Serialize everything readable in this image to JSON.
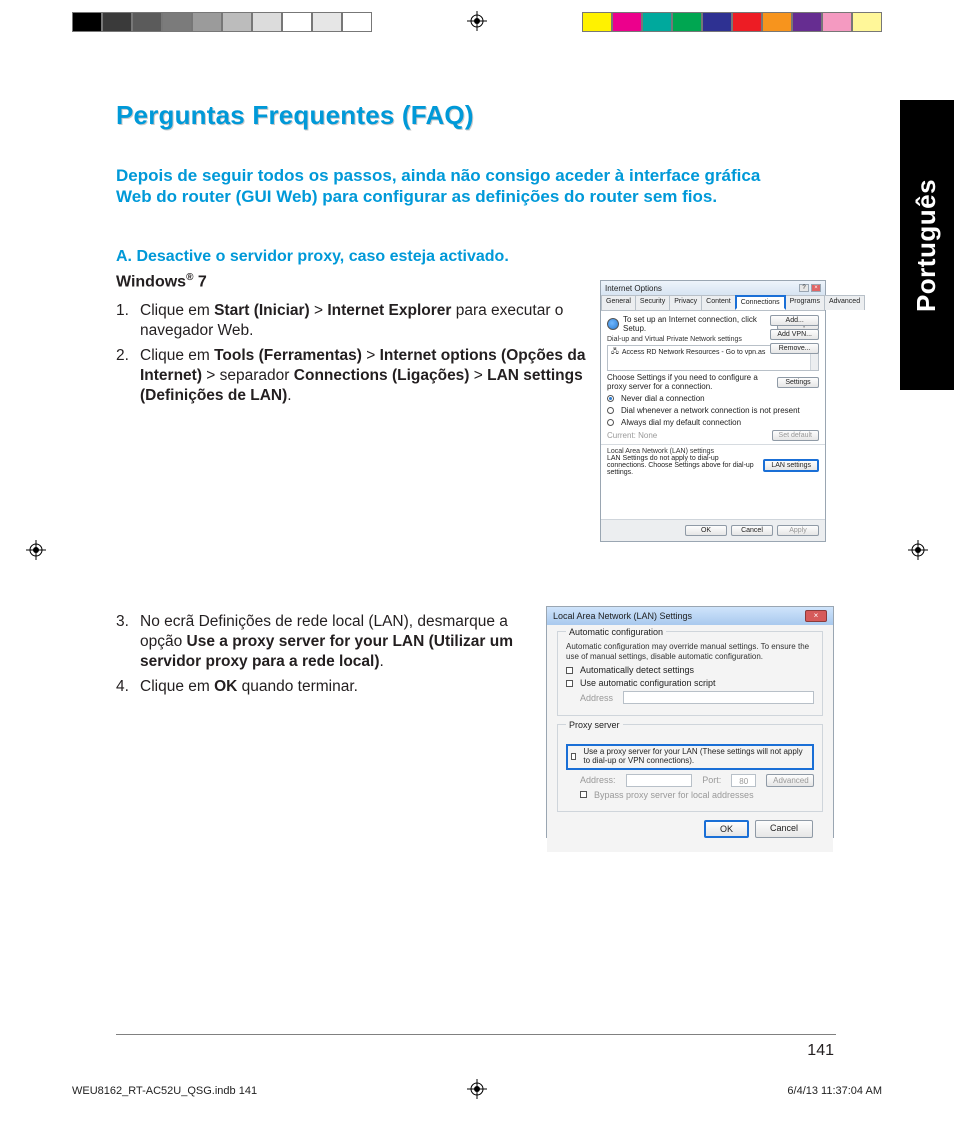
{
  "colorbar": {
    "left": [
      "#000000",
      "#3a3a3a",
      "#5b5b5b",
      "#7b7b7b",
      "#9b9b9b",
      "#bcbcbc",
      "#dcdcdc",
      "#ffffff",
      "#e6e6e6",
      "#ffffff"
    ],
    "right": [
      "#fff200",
      "#ec008c",
      "#00a99d",
      "#00a651",
      "#2e3192",
      "#ed1c24",
      "#f7941d",
      "#662d91",
      "#f49ac1",
      "#fff799"
    ]
  },
  "lang_tab": "Português",
  "title": "Perguntas Frequentes (FAQ)",
  "intro": "Depois de seguir todos os passos, ainda não consigo aceder à interface gráfica Web do router (GUI Web) para configurar as definições do router sem fios.",
  "section_a": "A.   Desactive o servidor proxy, caso esteja activado.",
  "os_label_html": "Windows® 7",
  "steps_top": [
    {
      "num": "1.",
      "html": "Clique em <span class=\"b\">Start (Iniciar)</span> > <span class=\"b\">Internet Explorer</span> para executar o navegador Web."
    },
    {
      "num": "2.",
      "html": "Clique em <span class=\"b\">Tools (Ferramentas)</span> > <span class=\"b\">Internet op­tions (Opções da Internet)</span> > separador <span class=\"b\">Connec­tions (Ligações)</span> > <span class=\"b\">LAN settings (Definições de LAN)</span>."
    }
  ],
  "steps_bottom": [
    {
      "num": "3.",
      "html": "No ecrã Definições de rede local (LAN), des­marque a opção <span class=\"b\">Use a proxy server for your LAN (Utilizar um servidor proxy para a rede local)</span>."
    },
    {
      "num": "4.",
      "html": "Clique em <span class=\"b\">OK</span> quando terminar."
    }
  ],
  "ie_options": {
    "title": "Internet Options",
    "tabs": [
      "General",
      "Security",
      "Privacy",
      "Content",
      "Connections",
      "Programs",
      "Advanced"
    ],
    "active_tab_index": 4,
    "setup_text": "To set up an Internet connection, click Setup.",
    "setup_btn": "Setup",
    "dialup_label": "Dial-up and Virtual Private Network settings",
    "list_item": "Access RD Network Resources - Go to vpn.as",
    "side_btns": [
      "Add...",
      "Add VPN...",
      "Remove..."
    ],
    "choose_text": "Choose Settings if you need to configure a proxy server for a connection.",
    "settings_btn": "Settings",
    "radios": [
      {
        "label": "Never dial a connection",
        "checked": true
      },
      {
        "label": "Dial whenever a network connection is not present",
        "checked": false
      },
      {
        "label": "Always dial my default connection",
        "checked": false
      }
    ],
    "current": "Current:     None",
    "setdefault_btn": "Set default",
    "lan_label": "Local Area Network (LAN) settings",
    "lan_text": "LAN Settings do not apply to dial-up connections. Choose Settings above for dial-up settings.",
    "lan_btn": "LAN settings",
    "footer": [
      "OK",
      "Cancel",
      "Apply"
    ]
  },
  "lan": {
    "title": "Local Area Network (LAN) Settings",
    "auto_legend": "Automatic configuration",
    "auto_text": "Automatic configuration may override manual settings. To ensure the use of manual settings, disable automatic configuration.",
    "chk1": "Automatically detect settings",
    "chk2": "Use automatic configuration script",
    "address_label": "Address",
    "proxy_legend": "Proxy server",
    "proxy_chk": "Use a proxy server for your LAN (These settings will not apply to dial-up or VPN connections).",
    "addr_label": "Address:",
    "port_label": "Port:",
    "port_value": "80",
    "advanced_btn": "Advanced",
    "bypass_chk": "Bypass proxy server for local addresses",
    "ok": "OK",
    "cancel": "Cancel"
  },
  "page_number": "141",
  "imprint_left": "WEU8162_RT-AC52U_QSG.indb   141",
  "imprint_right": "6/4/13   11:37:04 AM"
}
